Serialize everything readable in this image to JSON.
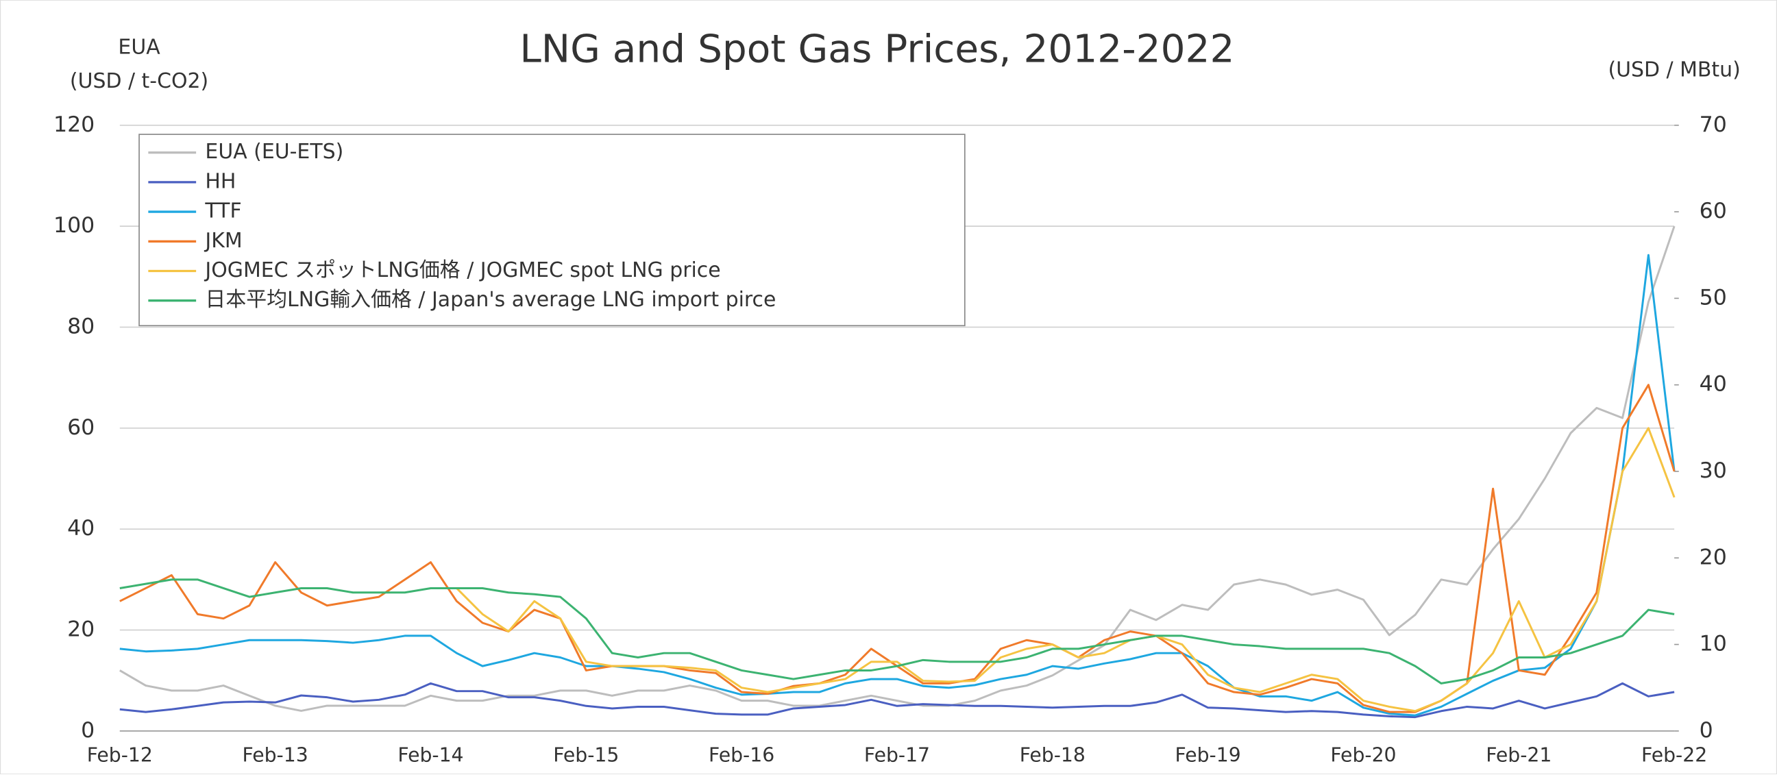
{
  "chart_data": {
    "type": "line",
    "title": "LNG and Spot Gas Prices, 2012-2022",
    "ylabel": [
      "EUA",
      "(USD / t-CO2)"
    ],
    "y2label": "(USD / MBtu)",
    "categories": [
      "Feb-12",
      null,
      null,
      null,
      null,
      null,
      "Feb-13",
      null,
      null,
      null,
      null,
      null,
      "Feb-14",
      null,
      null,
      null,
      null,
      null,
      "Feb-15",
      null,
      null,
      null,
      null,
      null,
      "Feb-16",
      null,
      null,
      null,
      null,
      null,
      "Feb-17",
      null,
      null,
      null,
      null,
      null,
      "Feb-18",
      null,
      null,
      null,
      null,
      null,
      "Feb-19",
      null,
      null,
      null,
      null,
      null,
      "Feb-20",
      null,
      null,
      null,
      null,
      null,
      "Feb-21",
      null,
      null,
      null,
      null,
      null,
      "Feb-22"
    ],
    "ylim": [
      0,
      120
    ],
    "yticks": [
      0,
      20,
      40,
      60,
      80,
      100,
      120
    ],
    "y2lim": [
      0,
      70
    ],
    "y2ticks": [
      0,
      10,
      20,
      30,
      40,
      50,
      60,
      70
    ],
    "grid": true,
    "legend": "upper left",
    "series": [
      {
        "name": "EUA (EU-ETS)",
        "color": "#bdbdbd",
        "axis": "y",
        "values": [
          12,
          9,
          8,
          8,
          9,
          7,
          5,
          4,
          5,
          5,
          5,
          5,
          7,
          6,
          6,
          7,
          7,
          8,
          8,
          7,
          8,
          8,
          9,
          8,
          6,
          6,
          5,
          5,
          6,
          7,
          6,
          5,
          5,
          6,
          8,
          9,
          11,
          14,
          17,
          24,
          22,
          25,
          24,
          29,
          30,
          29,
          27,
          28,
          26,
          19,
          23,
          30,
          29,
          36,
          42,
          50,
          59,
          64,
          62,
          85,
          100
        ]
      },
      {
        "name": "HH",
        "color": "#4a5fc1",
        "axis": "y2",
        "values": [
          2.5,
          2.2,
          2.5,
          2.9,
          3.3,
          3.4,
          3.3,
          4.1,
          3.9,
          3.4,
          3.6,
          4.2,
          5.5,
          4.6,
          4.6,
          3.9,
          3.9,
          3.5,
          2.9,
          2.6,
          2.8,
          2.8,
          2.4,
          2.0,
          1.9,
          1.9,
          2.6,
          2.8,
          3.0,
          3.6,
          2.9,
          3.1,
          3.0,
          2.9,
          2.9,
          2.8,
          2.7,
          2.8,
          2.9,
          2.9,
          3.3,
          4.2,
          2.7,
          2.6,
          2.4,
          2.2,
          2.3,
          2.2,
          1.9,
          1.7,
          1.6,
          2.3,
          2.8,
          2.6,
          3.5,
          2.6,
          3.3,
          4.0,
          5.5,
          4.0,
          4.5
        ]
      },
      {
        "name": "TTF",
        "color": "#1ea7e0",
        "axis": "y2",
        "values": [
          9.5,
          9.2,
          9.3,
          9.5,
          10,
          10.5,
          10.5,
          10.5,
          10.4,
          10.2,
          10.5,
          11,
          11,
          9,
          7.5,
          8.2,
          9,
          8.5,
          7.5,
          7.5,
          7.2,
          6.8,
          6,
          5,
          4.2,
          4.3,
          4.5,
          4.5,
          5.5,
          6,
          6,
          5.2,
          5,
          5.3,
          6,
          6.5,
          7.5,
          7.2,
          7.8,
          8.3,
          9,
          9,
          7.5,
          5,
          4,
          4,
          3.5,
          4.5,
          2.7,
          2,
          1.8,
          2.8,
          4.3,
          5.8,
          7,
          7.3,
          9.5,
          15,
          30,
          55,
          30
        ]
      },
      {
        "name": "JKM",
        "color": "#f07a2a",
        "axis": "y2",
        "values": [
          15,
          16.5,
          18,
          13.5,
          13,
          14.5,
          19.5,
          16,
          14.5,
          15,
          15.5,
          17.5,
          19.5,
          15,
          12.5,
          11.5,
          14,
          13,
          7,
          7.5,
          7.5,
          7.5,
          7,
          6.7,
          4.5,
          4.3,
          5.2,
          5.5,
          6.5,
          9.5,
          7.5,
          5.5,
          5.5,
          6.0,
          9.5,
          10.5,
          10,
          8.5,
          10.5,
          11.5,
          11,
          9,
          5.5,
          4.5,
          4.2,
          5,
          6,
          5.5,
          3,
          2.2,
          2.2,
          3.5,
          5.5,
          28,
          7,
          6.5,
          11,
          16,
          35,
          40,
          30
        ]
      },
      {
        "name": "JOGMEC スポットLNG価格 / JOGMEC spot LNG price",
        "color": "#f5c342",
        "axis": "y2",
        "values": [
          null,
          null,
          null,
          null,
          null,
          null,
          null,
          null,
          null,
          null,
          null,
          null,
          null,
          16.5,
          13.5,
          11.5,
          15,
          13,
          8,
          7.5,
          7.5,
          7.5,
          7.3,
          7,
          5,
          4.5,
          5,
          5.5,
          6,
          8,
          8,
          5.8,
          5.7,
          5.8,
          8.5,
          9.5,
          10,
          8.5,
          9,
          10.5,
          11,
          10,
          6.5,
          5,
          4.5,
          5.5,
          6.5,
          6,
          3.5,
          2.8,
          2.3,
          3.5,
          5.5,
          9,
          15,
          8.5,
          10,
          15,
          30,
          35,
          27
        ]
      },
      {
        "name": "日本平均LNG輸入価格 / Japan's average LNG import pirce",
        "color": "#3cb371",
        "axis": "y2",
        "values": [
          16.5,
          17,
          17.5,
          17.5,
          16.5,
          15.5,
          16,
          16.5,
          16.5,
          16,
          16,
          16,
          16.5,
          16.5,
          16.5,
          16,
          15.8,
          15.5,
          13,
          9,
          8.5,
          9,
          9,
          8,
          7,
          6.5,
          6,
          6.5,
          7,
          7,
          7.5,
          8.2,
          8,
          8,
          8,
          8.5,
          9.5,
          9.5,
          10,
          10.5,
          11,
          11,
          10.5,
          10,
          9.8,
          9.5,
          9.5,
          9.5,
          9.5,
          9,
          7.5,
          5.5,
          6,
          7,
          8.5,
          8.5,
          9,
          10,
          11,
          14,
          13.5
        ]
      }
    ]
  }
}
